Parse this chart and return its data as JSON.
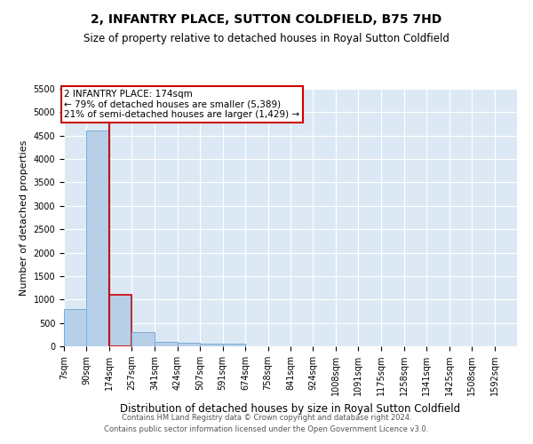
{
  "title": "2, INFANTRY PLACE, SUTTON COLDFIELD, B75 7HD",
  "subtitle": "Size of property relative to detached houses in Royal Sutton Coldfield",
  "xlabel": "Distribution of detached houses by size in Royal Sutton Coldfield",
  "ylabel": "Number of detached properties",
  "footer_line1": "Contains HM Land Registry data © Crown copyright and database right 2024.",
  "footer_line2": "Contains public sector information licensed under the Open Government Licence v3.0.",
  "property_size": 174,
  "annotation_line1": "2 INFANTRY PLACE: 174sqm",
  "annotation_line2": "← 79% of detached houses are smaller (5,389)",
  "annotation_line3": "21% of semi-detached houses are larger (1,429) →",
  "bar_color": "#b8cfe8",
  "bar_edge_color": "#7aadd4",
  "highlight_bar_color": "#b8cfe8",
  "highlight_bar_edge_color": "#cc0000",
  "redline_color": "#cc0000",
  "plot_bg_color": "#dce9f5",
  "grid_color": "#ffffff",
  "bins": [
    7,
    90,
    174,
    257,
    341,
    424,
    507,
    591,
    674,
    758,
    841,
    924,
    1008,
    1091,
    1175,
    1258,
    1341,
    1425,
    1508,
    1592,
    1675
  ],
  "counts": [
    800,
    4600,
    1100,
    300,
    100,
    75,
    50,
    50,
    0,
    0,
    0,
    0,
    0,
    0,
    0,
    0,
    0,
    0,
    0,
    0
  ],
  "ylim": [
    0,
    5500
  ],
  "yticks": [
    0,
    500,
    1000,
    1500,
    2000,
    2500,
    3000,
    3500,
    4000,
    4500,
    5000,
    5500
  ],
  "title_fontsize": 10,
  "subtitle_fontsize": 8.5,
  "ylabel_fontsize": 8,
  "xlabel_fontsize": 8.5,
  "tick_fontsize": 7,
  "footer_fontsize": 6,
  "annot_fontsize": 7.5
}
